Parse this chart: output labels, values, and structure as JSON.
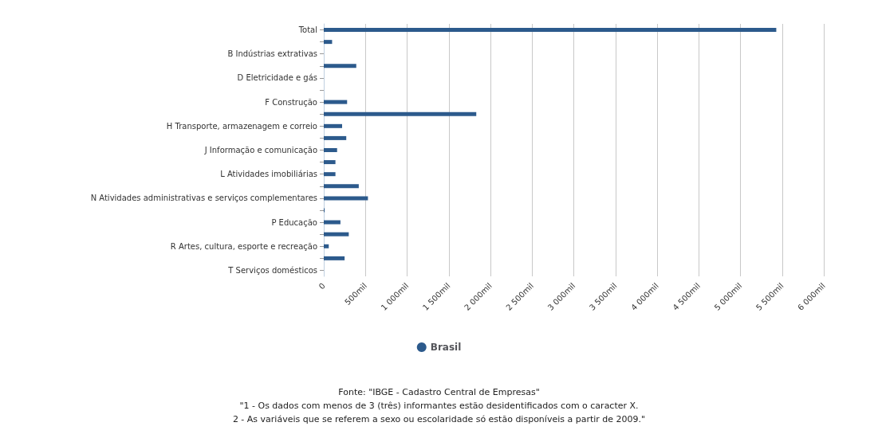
{
  "chart_data": {
    "type": "bar",
    "orientation": "horizontal",
    "categories": [
      "Total",
      null,
      "B Indústrias extrativas",
      null,
      "D Eletricidade e gás",
      null,
      "F Construção",
      null,
      "H Transporte, armazenagem e correio",
      null,
      "J Informação e comunicação",
      null,
      "L Atividades imobiliárias",
      null,
      "N Atividades administrativas e serviços complementares",
      null,
      "P Educação",
      null,
      "R Artes, cultura, esporte e recreação",
      null,
      "T Serviços domésticos"
    ],
    "series": [
      {
        "name": "Brasil",
        "color": "#2c5a8c",
        "values": [
          5430,
          100,
          0,
          390,
          0,
          0,
          280,
          1830,
          220,
          270,
          160,
          140,
          140,
          420,
          530,
          10,
          200,
          300,
          60,
          250,
          0
        ]
      }
    ],
    "xlim": [
      0,
      6000
    ],
    "xticks": [
      0,
      {
        "value": 500,
        "label": "500mil"
      },
      {
        "value": 1000,
        "label": "1 000mil"
      },
      {
        "value": 1500,
        "label": "1 500mil"
      },
      {
        "value": 2000,
        "label": "2 000mil"
      },
      {
        "value": 2500,
        "label": "2 500mil"
      },
      {
        "value": 3000,
        "label": "3 000mil"
      },
      {
        "value": 3500,
        "label": "3 500mil"
      },
      {
        "value": 4000,
        "label": "4 000mil"
      },
      {
        "value": 4500,
        "label": "4 500mil"
      },
      {
        "value": 5000,
        "label": "5 000mil"
      },
      {
        "value": 5500,
        "label": "5 500mil"
      },
      {
        "value": 6000,
        "label": "6 000mil"
      }
    ],
    "grid": "x",
    "legend": "bottom",
    "annotations": [
      "Fonte: \"IBGE - Cadastro Central de Empresas\"",
      "\"1 - Os dados com menos de 3 (três) informantes estão desidentificados com o caracter X.",
      "2 - As variáveis que se referem a sexo ou escolaridade só estão disponíveis a partir de 2009.\""
    ]
  }
}
